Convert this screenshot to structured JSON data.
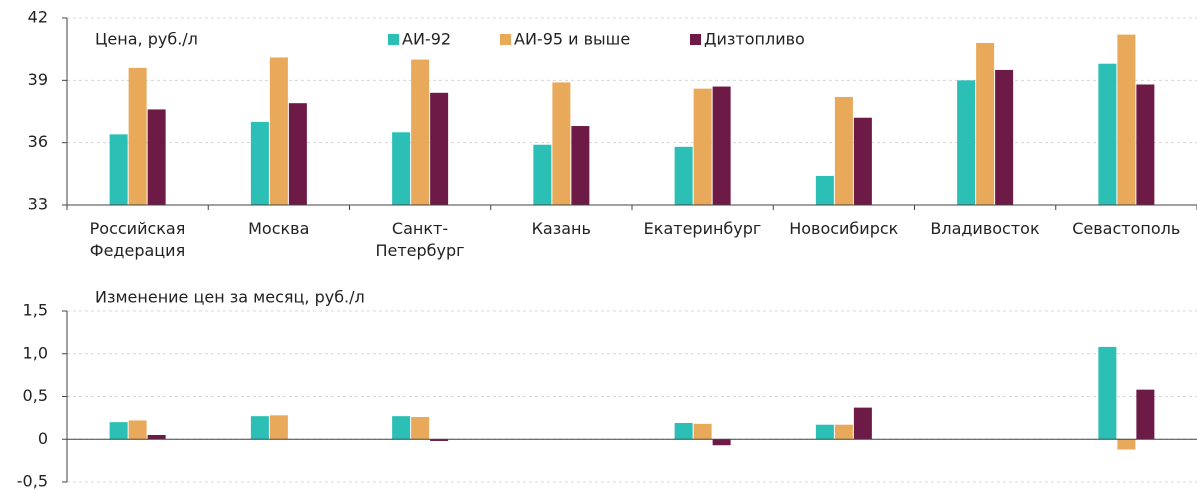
{
  "chart_data": [
    {
      "type": "bar",
      "axis_label": "Цена, руб./л",
      "categories": [
        "Российская\nФедерация",
        "Москва",
        "Санкт-\nПетербург",
        "Казань",
        "Екатеринбург",
        "Новосибирск",
        "Владивосток",
        "Севастополь"
      ],
      "series": [
        {
          "name": "АИ-92",
          "color": "#2bbfb5",
          "values": [
            36.4,
            37.0,
            36.5,
            35.9,
            35.8,
            34.4,
            39.0,
            39.8
          ]
        },
        {
          "name": "АИ-95 и выше",
          "color": "#e8a95a",
          "values": [
            39.6,
            40.1,
            40.0,
            38.9,
            38.6,
            38.2,
            40.8,
            41.2
          ]
        },
        {
          "name": "Дизтопливо",
          "color": "#6d1a46",
          "values": [
            37.6,
            37.9,
            38.4,
            36.8,
            38.7,
            37.2,
            39.5,
            38.8
          ]
        }
      ],
      "ylim": [
        33,
        42
      ],
      "yticks": [
        33,
        36,
        39,
        42
      ],
      "grid": true
    },
    {
      "type": "bar",
      "axis_label": "Изменение цен за месяц, руб./л",
      "series": [
        {
          "color": "#2bbfb5",
          "values": [
            0.2,
            0.27,
            0.27,
            0,
            0.19,
            0.17,
            0,
            1.08
          ]
        },
        {
          "color": "#e8a95a",
          "values": [
            0.22,
            0.28,
            0.26,
            0,
            0.18,
            0.17,
            0,
            -0.12
          ]
        },
        {
          "color": "#6d1a46",
          "values": [
            0.05,
            0,
            -0.02,
            0,
            -0.07,
            0.37,
            0,
            0.58
          ]
        }
      ],
      "ylim": [
        -0.5,
        1.5
      ],
      "yticks": [
        {
          "value": -0.5,
          "label": "-0,5"
        },
        0,
        {
          "value": 0.5,
          "label": "0,5"
        },
        {
          "value": 1.0,
          "label": "1,0"
        },
        {
          "value": 1.5,
          "label": "1,5"
        }
      ],
      "grid": true
    }
  ]
}
